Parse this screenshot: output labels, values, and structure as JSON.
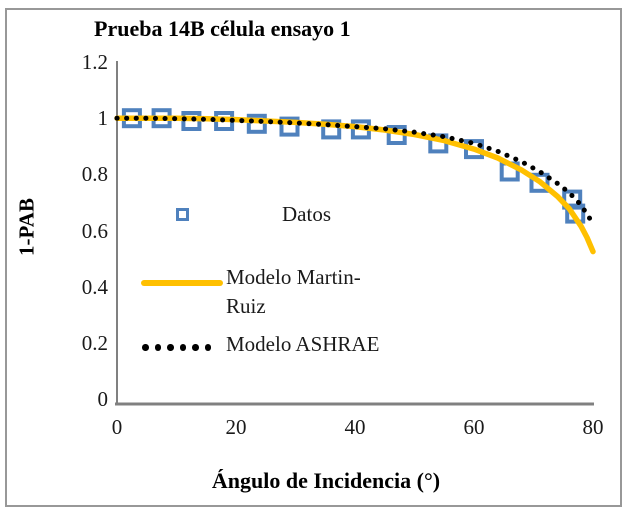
{
  "figure": {
    "title": "Prueba 14B célula ensayo 1",
    "y_axis": {
      "label": "1-PAB",
      "tick_labels": [
        "1.2",
        "1",
        "0.8",
        "0.6",
        "0.4",
        "0.2",
        "0"
      ],
      "min": 0,
      "max": 1.2
    },
    "x_axis": {
      "label": "Ángulo de Incidencia (°)",
      "tick_labels": [
        "0",
        "20",
        "40",
        "60",
        "80"
      ],
      "min": 0,
      "max": 80
    },
    "legend": {
      "datos": "Datos",
      "martin_ruiz": "Modelo Martin-Ruiz",
      "ashrae": "Modelo ASHRAE"
    },
    "colors": {
      "datos_blue": "#4f81bd",
      "martin_ruiz_yellow": "#ffc000",
      "ashrae_black": "#000000",
      "axis_gray": "#808080",
      "frame_gray": "#989898"
    }
  },
  "chart_data": {
    "type": "scatter",
    "title": "Prueba 14B célula ensayo 1",
    "xlabel": "Ángulo de Incidencia (°)",
    "ylabel": "1-PAB",
    "xlim": [
      0,
      80
    ],
    "ylim": [
      0,
      1.2
    ],
    "x_ticks": [
      0,
      20,
      40,
      60,
      80
    ],
    "y_ticks": [
      0,
      0.2,
      0.4,
      0.6,
      0.8,
      1,
      1.2
    ],
    "grid": false,
    "legend_position": "inside-center-left",
    "series": [
      {
        "name": "Datos",
        "type": "scatter",
        "marker": "open-square",
        "color": "#4f81bd",
        "points": [
          [
            2.5,
            1.0
          ],
          [
            7.5,
            1.0
          ],
          [
            12.5,
            0.99
          ],
          [
            18,
            0.99
          ],
          [
            23.5,
            0.98
          ],
          [
            29,
            0.97
          ],
          [
            36,
            0.96
          ],
          [
            41,
            0.96
          ],
          [
            47,
            0.94
          ],
          [
            54,
            0.91
          ],
          [
            60,
            0.89
          ],
          [
            66,
            0.81
          ],
          [
            71,
            0.77
          ],
          [
            76.5,
            0.71
          ],
          [
            77,
            0.66
          ]
        ]
      },
      {
        "name": "Modelo Martin-Ruiz",
        "type": "line",
        "line_style": "solid",
        "color": "#ffc000",
        "points": [
          [
            0,
            1.0
          ],
          [
            5,
            1.0
          ],
          [
            10,
            1.0
          ],
          [
            15,
            0.998
          ],
          [
            20,
            0.995
          ],
          [
            25,
            0.99
          ],
          [
            30,
            0.985
          ],
          [
            35,
            0.978
          ],
          [
            40,
            0.97
          ],
          [
            45,
            0.958
          ],
          [
            50,
            0.942
          ],
          [
            55,
            0.92
          ],
          [
            60,
            0.89
          ],
          [
            64,
            0.858
          ],
          [
            68,
            0.815
          ],
          [
            71,
            0.775
          ],
          [
            74,
            0.722
          ],
          [
            76,
            0.678
          ],
          [
            78,
            0.615
          ],
          [
            79,
            0.575
          ],
          [
            80,
            0.525
          ]
        ]
      },
      {
        "name": "Modelo ASHRAE",
        "type": "line",
        "line_style": "dotted",
        "color": "#000000",
        "points": [
          [
            0,
            1.0
          ],
          [
            5,
            1.0
          ],
          [
            10,
            0.998
          ],
          [
            15,
            0.996
          ],
          [
            20,
            0.992
          ],
          [
            25,
            0.988
          ],
          [
            30,
            0.983
          ],
          [
            35,
            0.977
          ],
          [
            40,
            0.97
          ],
          [
            45,
            0.962
          ],
          [
            50,
            0.95
          ],
          [
            55,
            0.934
          ],
          [
            60,
            0.91
          ],
          [
            64,
            0.882
          ],
          [
            68,
            0.845
          ],
          [
            71,
            0.81
          ],
          [
            74,
            0.768
          ],
          [
            76,
            0.735
          ],
          [
            78,
            0.69
          ],
          [
            80,
            0.625
          ]
        ]
      }
    ]
  }
}
